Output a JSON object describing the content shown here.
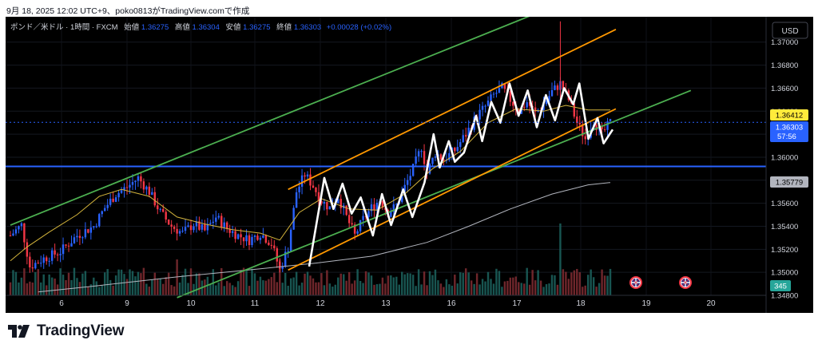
{
  "caption": "9月 18, 2025 12:02 UTC+9、poko0813がTradingView.comで作成",
  "legend": {
    "symbol": "ポンド／米ドル · 1時間 · FXCM",
    "open_label": "始値",
    "open": "1.36275",
    "high_label": "高値",
    "high": "1.36304",
    "low_label": "安値",
    "low": "1.36275",
    "close_label": "終値",
    "close": "1.36303",
    "change": "+0.00028 (+0.02%)"
  },
  "currency_button": "USD",
  "price_tags": {
    "ma_tag": "1.36412",
    "last_price": "1.36303",
    "countdown": "57:56",
    "long_ma_tag": "1.35779",
    "volume_tag": "345"
  },
  "brand": "TradingView",
  "colors": {
    "background": "#000000",
    "bull": "#2962ff",
    "bear": "#f23645",
    "channel_green": "#4caf50",
    "channel_orange": "#ff9800",
    "support_blue": "#2962ff",
    "ma_short": "#d4b43c",
    "ma_long": "#b2b5be",
    "zigzag": "#ffffff",
    "last_price_tag": "#2962ff",
    "ma_tag_bg": "#ffeb3b",
    "volume_tag_bg": "#26a69a"
  },
  "chart_data": {
    "type": "candlestick",
    "timeframe": "1H",
    "x_ticks": [
      "6",
      "9",
      "10",
      "11",
      "12",
      "13",
      "16",
      "17",
      "18",
      "19",
      "20"
    ],
    "y_ticks": [
      "1.37000",
      "1.36800",
      "1.36600",
      "1.36400",
      "1.36200",
      "1.36000",
      "1.35800",
      "1.35600",
      "1.35400",
      "1.35200",
      "1.35000",
      "1.34800"
    ],
    "ylim": [
      1.348,
      1.3722
    ],
    "support_level": 1.3592,
    "close_path": [
      [
        0,
        1.3532
      ],
      [
        4,
        1.3541
      ],
      [
        7,
        1.3505
      ],
      [
        12,
        1.3512
      ],
      [
        18,
        1.3518
      ],
      [
        24,
        1.3532
      ],
      [
        30,
        1.354
      ],
      [
        34,
        1.3556
      ],
      [
        38,
        1.3568
      ],
      [
        42,
        1.3574
      ],
      [
        46,
        1.3582
      ],
      [
        50,
        1.357
      ],
      [
        54,
        1.3552
      ],
      [
        58,
        1.354
      ],
      [
        62,
        1.3534
      ],
      [
        66,
        1.3542
      ],
      [
        70,
        1.3536
      ],
      [
        74,
        1.3548
      ],
      [
        78,
        1.3538
      ],
      [
        82,
        1.3532
      ],
      [
        86,
        1.3528
      ],
      [
        90,
        1.3534
      ],
      [
        94,
        1.3525
      ],
      [
        97,
        1.3502
      ],
      [
        100,
        1.3522
      ],
      [
        103,
        1.357
      ],
      [
        106,
        1.3585
      ],
      [
        109,
        1.3575
      ],
      [
        112,
        1.3562
      ],
      [
        115,
        1.3556
      ],
      [
        118,
        1.3566
      ],
      [
        121,
        1.3548
      ],
      [
        124,
        1.3532
      ],
      [
        127,
        1.3546
      ],
      [
        130,
        1.3556
      ],
      [
        133,
        1.3563
      ],
      [
        136,
        1.3552
      ],
      [
        139,
        1.3558
      ],
      [
        142,
        1.3574
      ],
      [
        145,
        1.359
      ],
      [
        148,
        1.3609
      ],
      [
        150,
        1.3586
      ],
      [
        153,
        1.3604
      ],
      [
        156,
        1.3598
      ],
      [
        160,
        1.3606
      ],
      [
        164,
        1.362
      ],
      [
        168,
        1.3636
      ],
      [
        171,
        1.3644
      ],
      [
        174,
        1.3654
      ],
      [
        177,
        1.366
      ],
      [
        180,
        1.365
      ],
      [
        183,
        1.364
      ],
      [
        186,
        1.3648
      ],
      [
        189,
        1.3638
      ],
      [
        192,
        1.3646
      ],
      [
        195,
        1.3657
      ],
      [
        198,
        1.3664
      ],
      [
        201,
        1.365
      ],
      [
        204,
        1.363
      ],
      [
        207,
        1.3616
      ],
      [
        210,
        1.3632
      ],
      [
        213,
        1.362
      ],
      [
        216,
        1.363
      ]
    ],
    "zigzag": [
      [
        0,
        1.3505
      ],
      [
        5,
        1.3582
      ],
      [
        8,
        1.3555
      ],
      [
        11,
        1.3577
      ],
      [
        14,
        1.3551
      ],
      [
        17,
        1.3565
      ],
      [
        21,
        1.3532
      ],
      [
        24,
        1.3568
      ],
      [
        27,
        1.3541
      ],
      [
        31,
        1.3572
      ],
      [
        34,
        1.3548
      ],
      [
        38,
        1.3578
      ],
      [
        41,
        1.362
      ],
      [
        43,
        1.3591
      ],
      [
        46,
        1.3614
      ],
      [
        48,
        1.3596
      ],
      [
        51,
        1.3604
      ],
      [
        55,
        1.3636
      ],
      [
        57,
        1.3614
      ],
      [
        60,
        1.3648
      ],
      [
        63,
        1.363
      ],
      [
        66,
        1.3664
      ],
      [
        69,
        1.3636
      ],
      [
        72,
        1.3658
      ],
      [
        75,
        1.3626
      ],
      [
        78,
        1.3654
      ],
      [
        81,
        1.3632
      ],
      [
        84,
        1.366
      ],
      [
        87,
        1.3646
      ],
      [
        89,
        1.3664
      ],
      [
        92,
        1.3616
      ],
      [
        95,
        1.3634
      ],
      [
        97,
        1.3612
      ],
      [
        100,
        1.3624
      ]
    ],
    "ma_short": [
      [
        0,
        1.351
      ],
      [
        6,
        1.3522
      ],
      [
        14,
        1.3535
      ],
      [
        24,
        1.355
      ],
      [
        32,
        1.3566
      ],
      [
        40,
        1.3572
      ],
      [
        50,
        1.3566
      ],
      [
        60,
        1.3548
      ],
      [
        70,
        1.3542
      ],
      [
        80,
        1.3537
      ],
      [
        90,
        1.3534
      ],
      [
        97,
        1.3528
      ],
      [
        104,
        1.3552
      ],
      [
        112,
        1.3564
      ],
      [
        122,
        1.3555
      ],
      [
        132,
        1.3554
      ],
      [
        142,
        1.3568
      ],
      [
        152,
        1.359
      ],
      [
        162,
        1.3605
      ],
      [
        172,
        1.363
      ],
      [
        182,
        1.3642
      ],
      [
        192,
        1.364
      ],
      [
        200,
        1.3645
      ],
      [
        208,
        1.3641
      ],
      [
        216,
        1.3641
      ]
    ],
    "ma_long": [
      [
        10,
        1.3483
      ],
      [
        30,
        1.3488
      ],
      [
        60,
        1.3496
      ],
      [
        90,
        1.3503
      ],
      [
        110,
        1.3508
      ],
      [
        130,
        1.3514
      ],
      [
        150,
        1.3526
      ],
      [
        165,
        1.354
      ],
      [
        180,
        1.3555
      ],
      [
        195,
        1.3568
      ],
      [
        208,
        1.3576
      ],
      [
        216,
        1.3578
      ]
    ],
    "channels": [
      {
        "name": "outer-green-upper",
        "color": "#4caf50",
        "from": [
          0,
          1.3541
        ],
        "to": [
          210,
          1.3745
        ]
      },
      {
        "name": "green-lower",
        "color": "#4caf50",
        "from": [
          60,
          1.3478
        ],
        "to": [
          245,
          1.3658
        ]
      },
      {
        "name": "orange-upper",
        "color": "#ff9800",
        "from": [
          100,
          1.3572
        ],
        "to": [
          218,
          1.3711
        ]
      },
      {
        "name": "orange-lower",
        "color": "#ff9800",
        "from": [
          100,
          1.3502
        ],
        "to": [
          218,
          1.3642
        ]
      }
    ],
    "volume_max": 520,
    "volume_spike": {
      "x": 198,
      "value": 520
    }
  }
}
